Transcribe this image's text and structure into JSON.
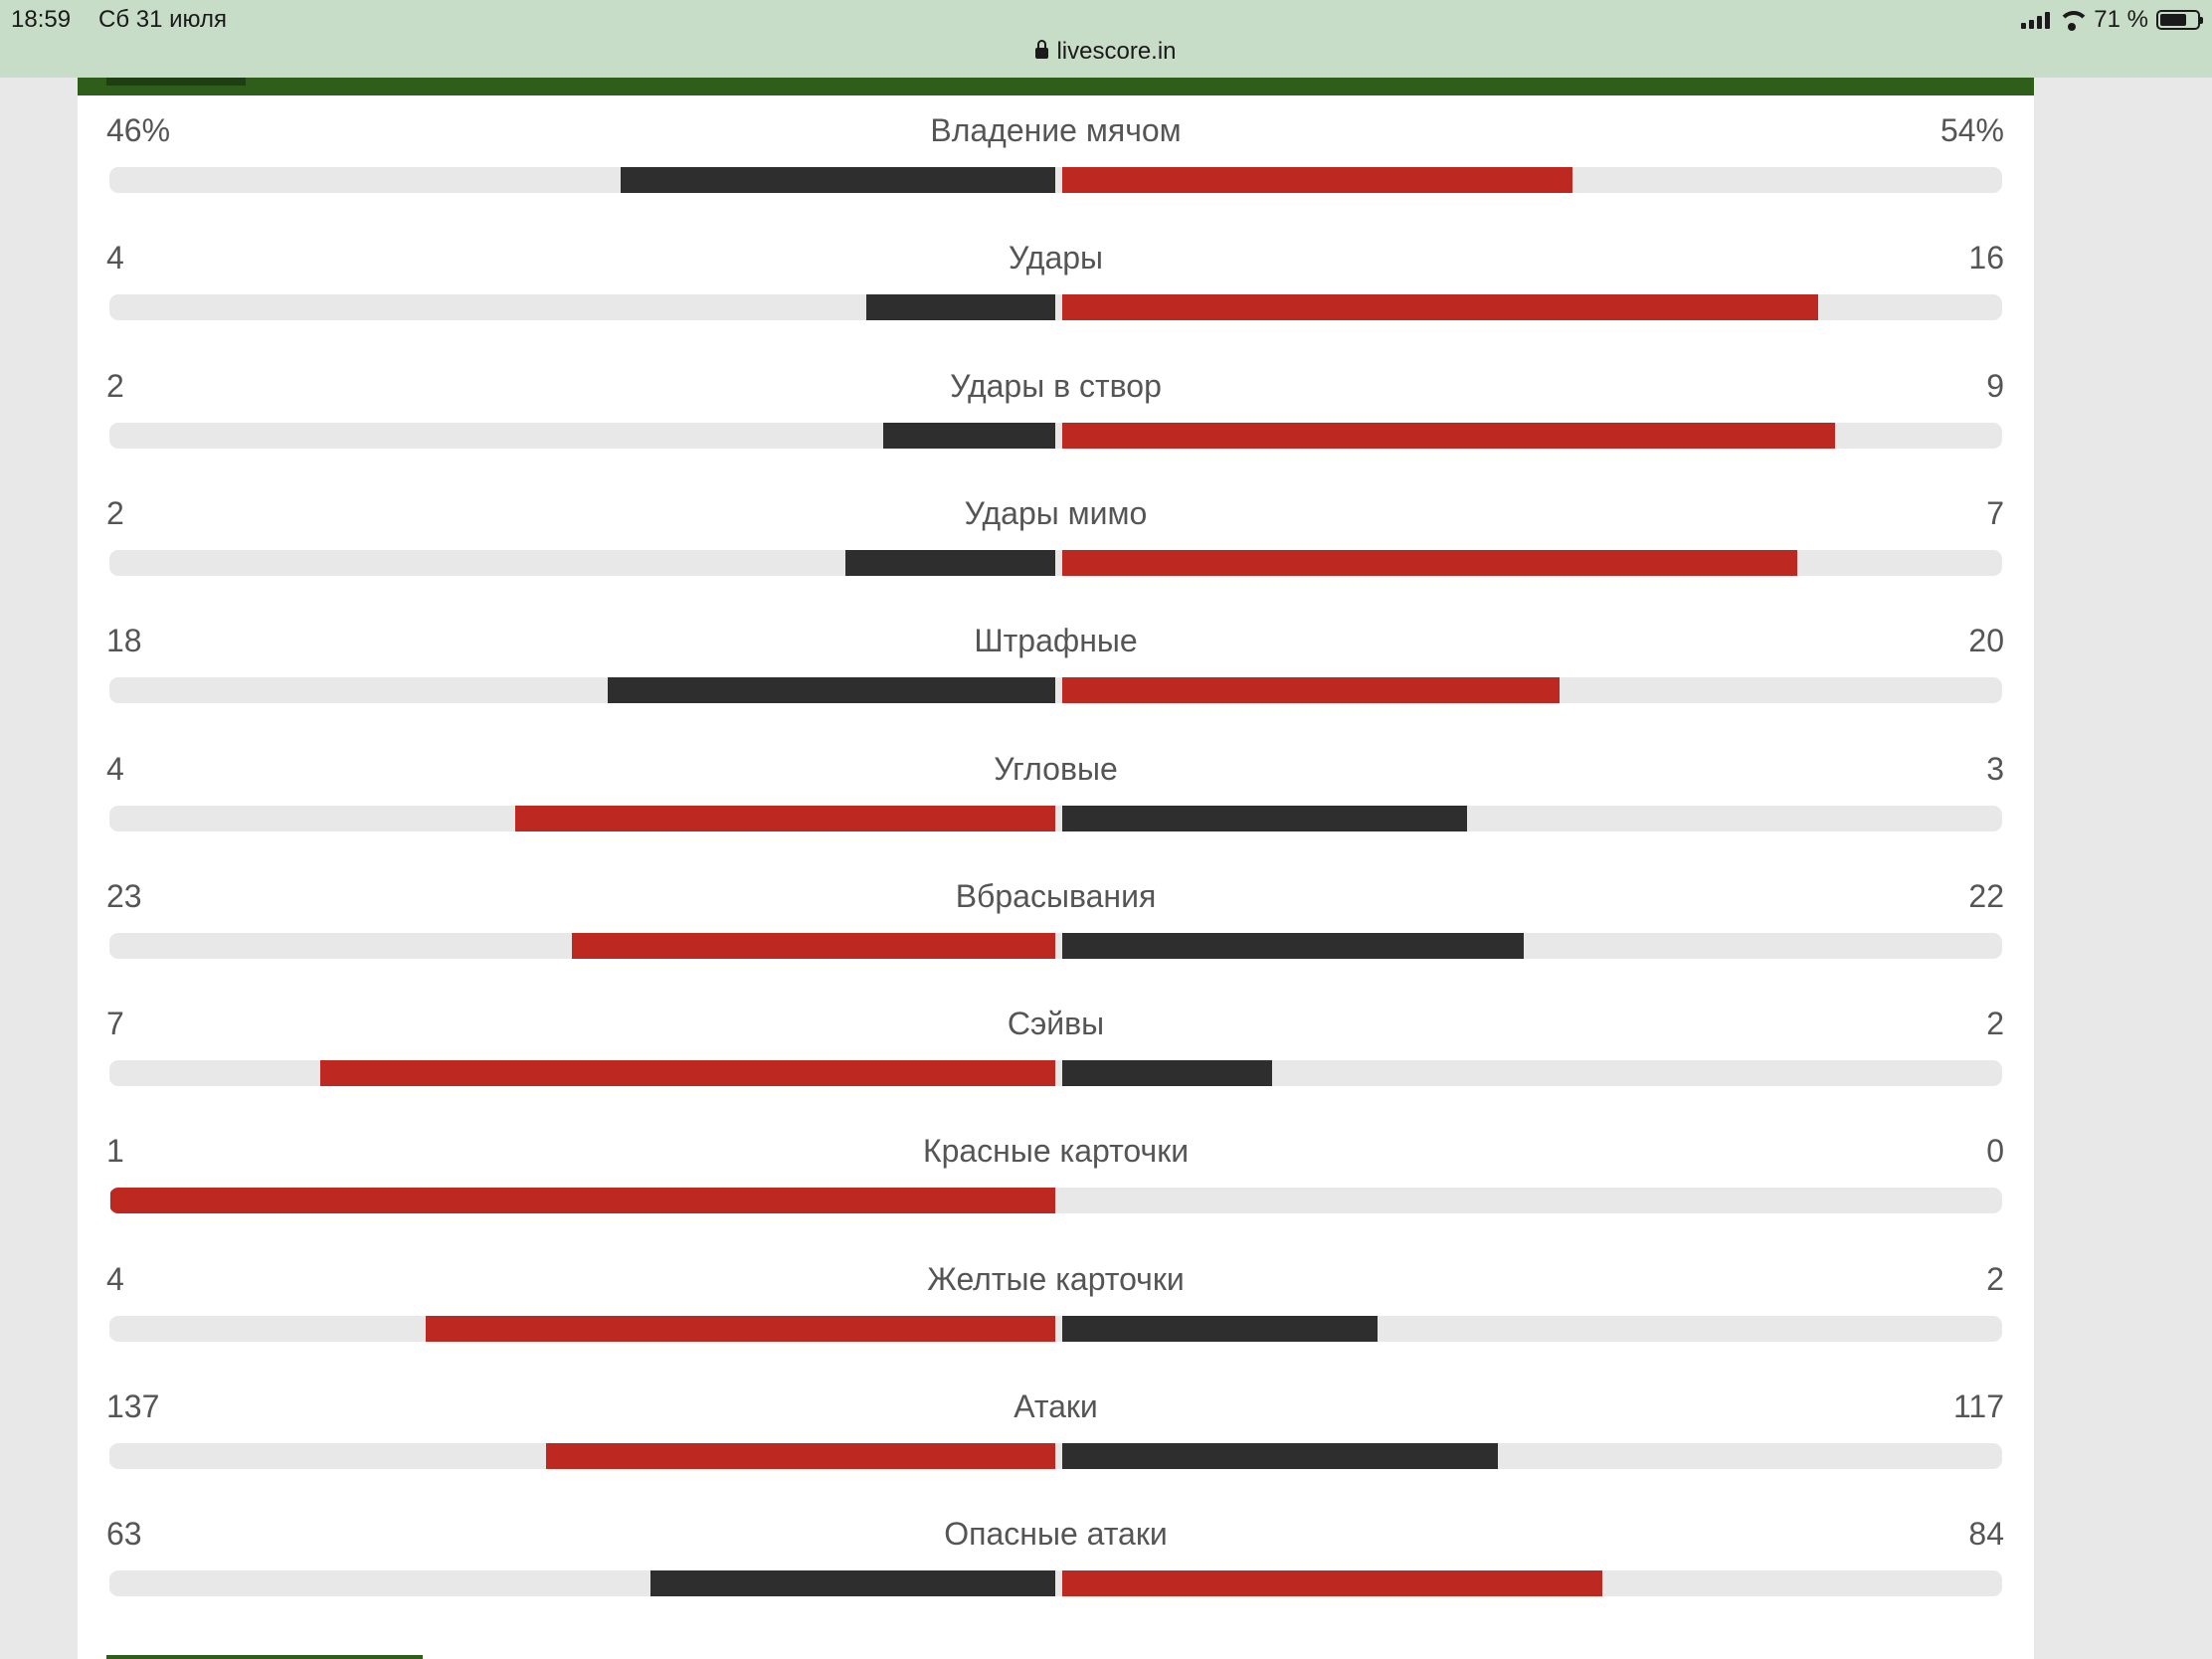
{
  "status_bar": {
    "time": "18:59",
    "date": "Сб 31 июля",
    "url": "livescore.in",
    "battery_text": "71 %",
    "battery_level": 0.71
  },
  "colors": {
    "dark": "#2e2e2e",
    "red": "#bd2820",
    "track": "#e8e8e8",
    "brand_green": "#2f5e1a"
  },
  "stats": [
    {
      "label": "Владение мячом",
      "left": "46%",
      "right": "54%",
      "left_share": 0.46,
      "right_share": 0.54,
      "left_color": "dark",
      "right_color": "red"
    },
    {
      "label": "Удары",
      "left": "4",
      "right": "16",
      "left_share": 0.2,
      "right_share": 0.8,
      "left_color": "dark",
      "right_color": "red"
    },
    {
      "label": "Удары в створ",
      "left": "2",
      "right": "9",
      "left_share": 0.1818,
      "right_share": 0.8182,
      "left_color": "dark",
      "right_color": "red"
    },
    {
      "label": "Удары мимо",
      "left": "2",
      "right": "7",
      "left_share": 0.2222,
      "right_share": 0.7778,
      "left_color": "dark",
      "right_color": "red"
    },
    {
      "label": "Штрафные",
      "left": "18",
      "right": "20",
      "left_share": 0.4737,
      "right_share": 0.5263,
      "left_color": "dark",
      "right_color": "red"
    },
    {
      "label": "Угловые",
      "left": "4",
      "right": "3",
      "left_share": 0.5714,
      "right_share": 0.4286,
      "left_color": "red",
      "right_color": "dark"
    },
    {
      "label": "Вбрасывания",
      "left": "23",
      "right": "22",
      "left_share": 0.5111,
      "right_share": 0.4889,
      "left_color": "red",
      "right_color": "dark"
    },
    {
      "label": "Сэйвы",
      "left": "7",
      "right": "2",
      "left_share": 0.7778,
      "right_share": 0.2222,
      "left_color": "red",
      "right_color": "dark"
    },
    {
      "label": "Красные карточки",
      "left": "1",
      "right": "0",
      "left_share": 1.0,
      "right_share": 0.0,
      "left_color": "red",
      "right_color": "dark"
    },
    {
      "label": "Желтые карточки",
      "left": "4",
      "right": "2",
      "left_share": 0.6667,
      "right_share": 0.3333,
      "left_color": "red",
      "right_color": "dark"
    },
    {
      "label": "Атаки",
      "left": "137",
      "right": "117",
      "left_share": 0.5394,
      "right_share": 0.4606,
      "left_color": "red",
      "right_color": "dark"
    },
    {
      "label": "Опасные атаки",
      "left": "63",
      "right": "84",
      "left_share": 0.4286,
      "right_share": 0.5714,
      "left_color": "dark",
      "right_color": "red"
    }
  ]
}
